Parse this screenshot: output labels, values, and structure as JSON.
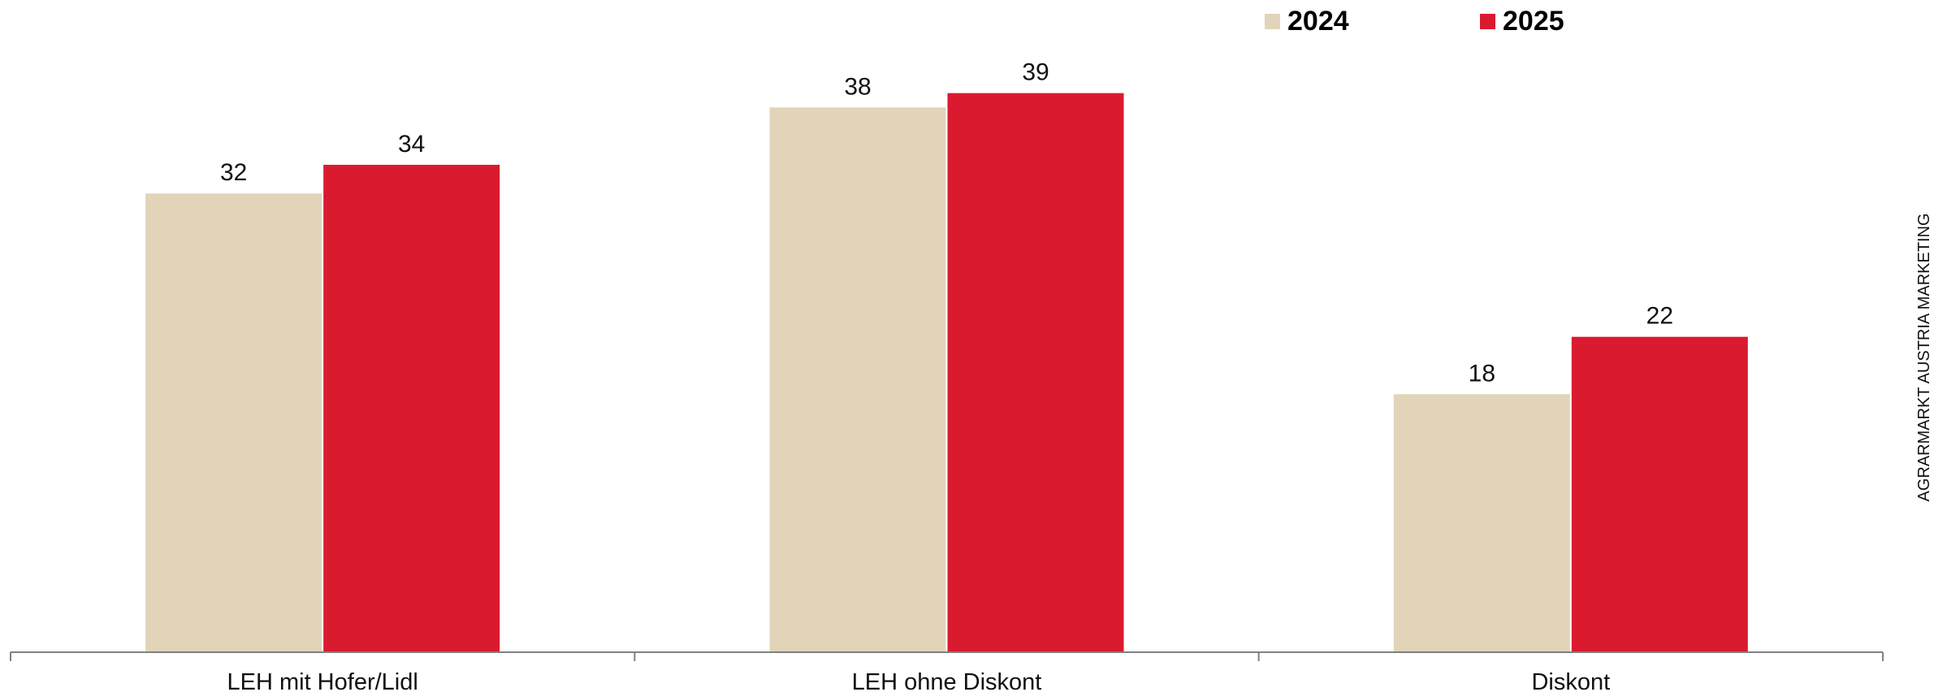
{
  "chart_data": {
    "type": "bar",
    "categories": [
      "LEH mit Hofer/Lidl",
      "LEH ohne Diskont",
      "Diskont"
    ],
    "series": [
      {
        "name": "2024",
        "values": [
          32,
          38,
          18
        ],
        "color": "#E2D4B9"
      },
      {
        "name": "2025",
        "values": [
          34,
          39,
          22
        ],
        "color": "#DA1A2F"
      }
    ],
    "ylim": [
      0,
      40
    ],
    "grid": false,
    "legend_position": "top-right",
    "title": "",
    "xlabel": "",
    "ylabel": ""
  },
  "credit": "AGRARMARKT AUSTRIA MARKETING",
  "axis_color": "#808080"
}
